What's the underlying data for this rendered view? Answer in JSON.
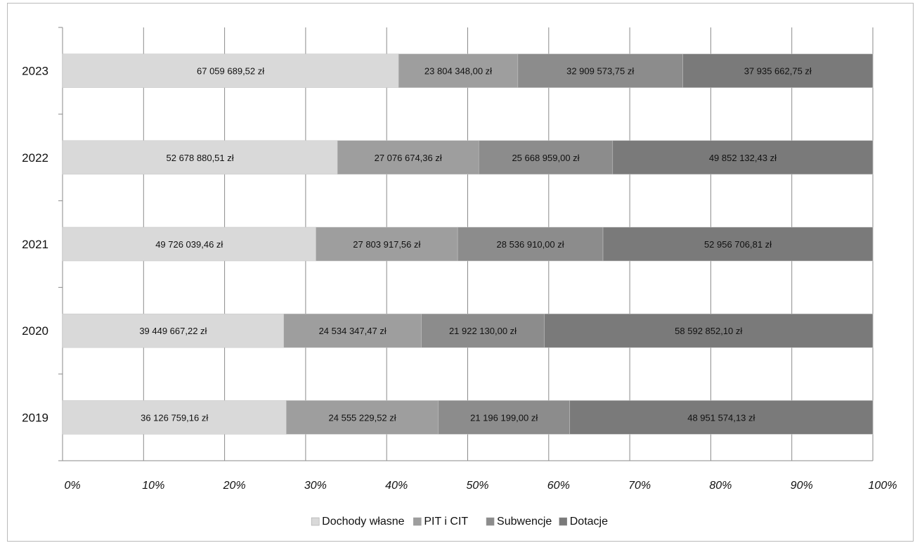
{
  "chart_data": {
    "type": "bar",
    "orientation": "horizontal",
    "stacked": "percent",
    "categories": [
      "2023",
      "2022",
      "2021",
      "2020",
      "2019"
    ],
    "series": [
      {
        "name": "Dochody własne",
        "color": "#d9d9d9",
        "values": [
          67059689.52,
          52678880.51,
          49726039.46,
          39449667.22,
          36126759.16
        ],
        "labels": [
          "67 059 689,52 zł",
          "52 678 880,51 zł",
          "49 726 039,46 zł",
          "39 449 667,22 zł",
          "36 126 759,16 zł"
        ]
      },
      {
        "name": "PIT i CIT",
        "color": "#9e9e9e",
        "values": [
          23804348.0,
          27076674.36,
          27803917.56,
          24534347.47,
          24555229.52
        ],
        "labels": [
          "23 804 348,00 zł",
          "27 076 674,36 zł",
          "27 803 917,56 zł",
          "24 534 347,47 zł",
          "24 555 229,52 zł"
        ]
      },
      {
        "name": "Subwencje",
        "color": "#8c8c8c",
        "values": [
          32909573.75,
          25668959.0,
          28536910.0,
          21922130.0,
          21196199.0
        ],
        "labels": [
          "32 909 573,75 zł",
          "25 668 959,00 zł",
          "28 536 910,00 zł",
          "21 922 130,00 zł",
          "21 196 199,00 zł"
        ]
      },
      {
        "name": "Dotacje",
        "color": "#7a7a7a",
        "values": [
          37935662.75,
          49852132.43,
          52956706.81,
          58592852.1,
          48951574.13
        ],
        "labels": [
          "37 935 662,75 zł",
          "49 852 132,43 zł",
          "52 956 706,81 zł",
          "58 592 852,10 zł",
          "48 951 574,13 zł"
        ]
      }
    ],
    "x_ticks": [
      "0%",
      "10%",
      "20%",
      "30%",
      "40%",
      "50%",
      "60%",
      "70%",
      "80%",
      "90%",
      "100%"
    ],
    "xlim": [
      0,
      100
    ],
    "grid": "vertical",
    "legend": "bottom"
  }
}
